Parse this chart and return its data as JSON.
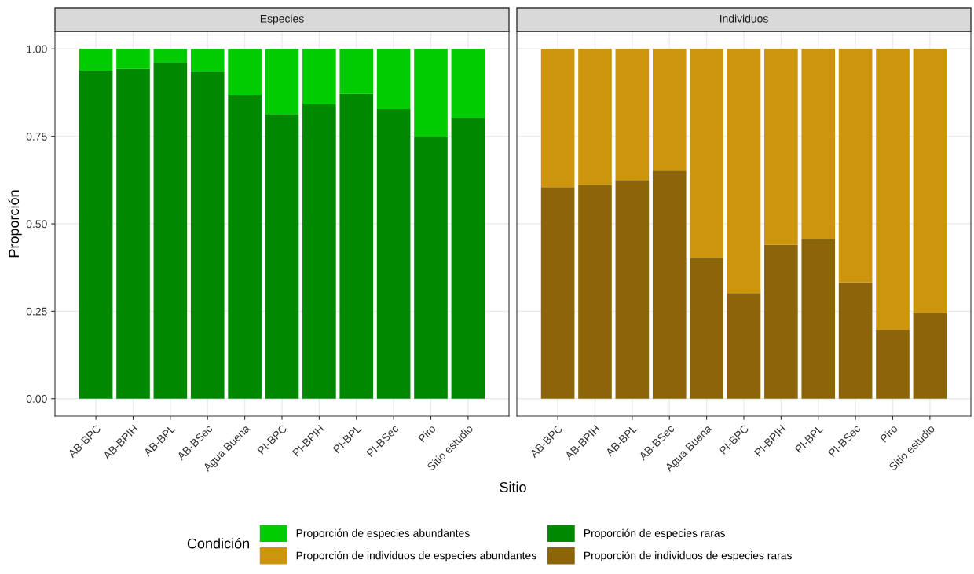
{
  "chart_data": [
    {
      "type": "bar",
      "stacked": true,
      "title": "Especies",
      "ylabel": "Proporción",
      "xlabel": "Sitio",
      "legend_title": "Condición",
      "legend": "bottom",
      "grid": true,
      "categories": [
        "AB-BPC",
        "AB-BPIH",
        "AB-BPL",
        "AB-BSec",
        "Agua Buena",
        "PI-BPC",
        "PI-BPIH",
        "PI-BPL",
        "PI-BSec",
        "Piro",
        "Sitio estudio"
      ],
      "ylim": [
        -0.05,
        1.05
      ],
      "yticks": [
        {
          "value": 0,
          "label": "0.00"
        },
        {
          "value": 0.25,
          "label": "0.25"
        },
        {
          "value": 0.5,
          "label": "0.50"
        },
        {
          "value": 0.75,
          "label": "0.75"
        },
        {
          "value": 1,
          "label": "1.00"
        }
      ],
      "series": [
        {
          "name": "Proporción de especies raras",
          "color": "#008800",
          "values": [
            0.938,
            0.943,
            0.962,
            0.935,
            0.868,
            0.814,
            0.841,
            0.871,
            0.828,
            0.748,
            0.803
          ]
        },
        {
          "name": "Proporción de especies abundantes",
          "color": "#00cc00",
          "values": [
            0.062,
            0.057,
            0.038,
            0.065,
            0.132,
            0.186,
            0.159,
            0.129,
            0.172,
            0.252,
            0.197
          ]
        }
      ]
    },
    {
      "type": "bar",
      "stacked": true,
      "title": "Individuos",
      "legend": "bottom",
      "grid": true,
      "tick_labels": "x",
      "categories": [
        "AB-BPC",
        "AB-BPIH",
        "AB-BPL",
        "AB-BSec",
        "Agua Buena",
        "PI-BPC",
        "PI-BPIH",
        "PI-BPL",
        "PI-BSec",
        "Piro",
        "Sitio estudio"
      ],
      "ylim": [
        -0.05,
        1.05
      ],
      "yticks": [
        {
          "value": 0,
          "label": null
        },
        {
          "value": 0.25,
          "label": null
        },
        {
          "value": 0.5,
          "label": null
        },
        {
          "value": 0.75,
          "label": null
        },
        {
          "value": 1,
          "label": null
        }
      ],
      "series": [
        {
          "name": "Proporción de individuos de especies raras",
          "color": "#8b6508",
          "values": [
            0.605,
            0.611,
            0.625,
            0.652,
            0.403,
            0.302,
            0.44,
            0.457,
            0.333,
            0.197,
            0.246
          ]
        },
        {
          "name": "Proporción de individuos de especies abundantes",
          "color": "#cd950c",
          "values": [
            0.395,
            0.389,
            0.375,
            0.348,
            0.597,
            0.698,
            0.56,
            0.543,
            0.667,
            0.803,
            0.754
          ]
        }
      ]
    }
  ]
}
